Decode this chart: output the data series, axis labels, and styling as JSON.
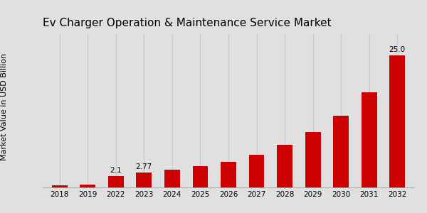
{
  "title": "Ev Charger Operation & Maintenance Service Market",
  "ylabel": "Market Value in USD Billion",
  "categories": [
    "2018",
    "2019",
    "2022",
    "2023",
    "2024",
    "2025",
    "2026",
    "2027",
    "2028",
    "2029",
    "2030",
    "2031",
    "2032"
  ],
  "values": [
    0.35,
    0.55,
    2.1,
    2.77,
    3.3,
    4.0,
    4.9,
    6.2,
    8.0,
    10.5,
    13.5,
    18.0,
    25.0
  ],
  "bar_color": "#cc0000",
  "annotations": [
    [
      2,
      "2.1"
    ],
    [
      3,
      "2.77"
    ],
    [
      12,
      "25.0"
    ]
  ],
  "background_color": "#e0e0e0",
  "title_fontsize": 11,
  "ylabel_fontsize": 8,
  "tick_fontsize": 7.5,
  "annotation_fontsize": 7.5,
  "bottom_strip_color": "#cc0000",
  "grid_color": "#c8c8c8",
  "ylim": [
    0,
    29
  ],
  "bar_width": 0.55
}
